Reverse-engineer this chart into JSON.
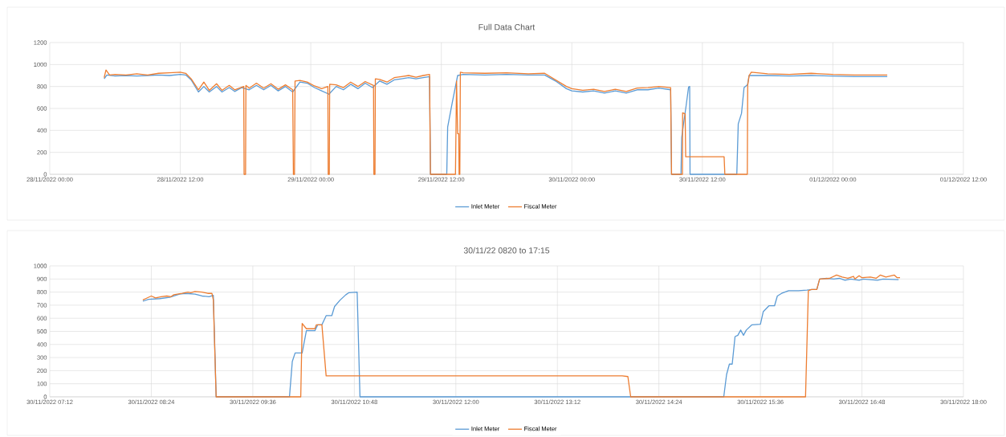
{
  "chart_data": [
    {
      "type": "line",
      "title": "Full Data Chart",
      "grid": true,
      "legend": "bottom",
      "xlim": [
        "2022-11-28T00:00",
        "2022-12-01T12:00"
      ],
      "xticks": [
        {
          "value": "2022-11-28T00:00",
          "label": "28/11/2022 00:00"
        },
        {
          "value": "2022-11-28T12:00",
          "label": "28/11/2022 12:00"
        },
        {
          "value": "2022-11-29T00:00",
          "label": "29/11/2022 00:00"
        },
        {
          "value": "2022-11-29T12:00",
          "label": "29/11/2022 12:00"
        },
        {
          "value": "2022-11-30T00:00",
          "label": "30/11/2022 00:00"
        },
        {
          "value": "2022-11-30T12:00",
          "label": "30/11/2022 12:00"
        },
        {
          "value": "2022-12-01T00:00",
          "label": "01/12/2022 00:00"
        },
        {
          "value": "2022-12-01T12:00",
          "label": "01/12/2022 12:00"
        }
      ],
      "ylim": [
        0,
        1200
      ],
      "yticks": [
        0,
        200,
        400,
        600,
        800,
        1000,
        1200
      ],
      "series": [
        {
          "name": "Inlet Meter",
          "color": "#5b9bd5",
          "x": [
            "2022-11-28T05:00",
            "2022-11-28T05:15",
            "2022-11-28T06:00",
            "2022-11-28T07:00",
            "2022-11-28T08:00",
            "2022-11-28T09:00",
            "2022-11-28T10:00",
            "2022-11-28T11:00",
            "2022-11-28T12:00",
            "2022-11-28T12:30",
            "2022-11-28T13:00",
            "2022-11-28T13:40",
            "2022-11-28T14:10",
            "2022-11-28T14:40",
            "2022-11-28T15:20",
            "2022-11-28T15:50",
            "2022-11-28T16:30",
            "2022-11-28T17:00",
            "2022-11-28T17:40",
            "2022-11-28T18:20",
            "2022-11-28T19:00",
            "2022-11-28T19:40",
            "2022-11-28T20:20",
            "2022-11-28T21:00",
            "2022-11-28T21:40",
            "2022-11-28T22:20",
            "2022-11-28T23:00",
            "2022-11-28T23:40",
            "2022-11-29T00:20",
            "2022-11-29T01:00",
            "2022-11-29T01:40",
            "2022-11-29T02:20",
            "2022-11-29T03:00",
            "2022-11-29T03:40",
            "2022-11-29T04:20",
            "2022-11-29T05:00",
            "2022-11-29T05:40",
            "2022-11-29T06:20",
            "2022-11-29T07:00",
            "2022-11-29T07:40",
            "2022-11-29T08:20",
            "2022-11-29T09:00",
            "2022-11-29T09:40",
            "2022-11-29T10:20",
            "2022-11-29T10:55",
            "2022-11-29T11:00",
            "2022-11-29T12:30",
            "2022-11-29T12:35",
            "2022-11-29T13:00",
            "2022-11-29T13:30",
            "2022-11-29T14:00",
            "2022-11-29T16:00",
            "2022-11-29T18:00",
            "2022-11-29T20:00",
            "2022-11-29T21:30",
            "2022-11-29T22:30",
            "2022-11-29T23:30",
            "2022-11-30T00:00",
            "2022-11-30T01:00",
            "2022-11-30T02:00",
            "2022-11-30T03:00",
            "2022-11-30T04:00",
            "2022-11-30T05:00",
            "2022-11-30T06:00",
            "2022-11-30T07:00",
            "2022-11-30T08:00",
            "2022-11-30T09:05",
            "2022-11-30T09:10",
            "2022-11-30T10:02",
            "2022-11-30T10:06",
            "2022-11-30T10:20",
            "2022-11-30T10:30",
            "2022-11-30T10:44",
            "2022-11-30T10:50",
            "2022-11-30T10:52",
            "2022-11-30T15:10",
            "2022-11-30T15:18",
            "2022-11-30T15:36",
            "2022-11-30T15:50",
            "2022-11-30T16:09",
            "2022-11-30T16:18",
            "2022-11-30T18:00",
            "2022-11-30T20:00",
            "2022-11-30T22:00",
            "2022-12-01T00:00",
            "2022-12-01T02:00",
            "2022-12-01T04:00",
            "2022-12-01T05:00"
          ],
          "values": [
            870,
            905,
            895,
            900,
            895,
            900,
            905,
            900,
            910,
            905,
            860,
            750,
            800,
            750,
            800,
            750,
            790,
            755,
            790,
            770,
            810,
            770,
            810,
            760,
            800,
            750,
            840,
            830,
            790,
            760,
            730,
            800,
            770,
            820,
            780,
            830,
            790,
            850,
            820,
            860,
            870,
            880,
            870,
            880,
            890,
            0,
            0,
            430,
            650,
            900,
            910,
            905,
            910,
            905,
            905,
            850,
            780,
            760,
            750,
            760,
            740,
            760,
            740,
            770,
            770,
            785,
            770,
            0,
            0,
            335,
            505,
            620,
            795,
            800,
            0,
            0,
            460,
            555,
            790,
            815,
            900,
            900,
            895,
            900,
            895,
            890,
            890,
            890
          ]
        },
        {
          "name": "Fiscal Meter",
          "color": "#ed7d31",
          "x": [
            "2022-11-28T05:00",
            "2022-11-28T05:10",
            "2022-11-28T05:30",
            "2022-11-28T06:00",
            "2022-11-28T07:00",
            "2022-11-28T08:00",
            "2022-11-28T09:00",
            "2022-11-28T10:00",
            "2022-11-28T11:00",
            "2022-11-28T12:00",
            "2022-11-28T12:30",
            "2022-11-28T13:00",
            "2022-11-28T13:40",
            "2022-11-28T14:10",
            "2022-11-28T14:40",
            "2022-11-28T15:20",
            "2022-11-28T15:50",
            "2022-11-28T16:30",
            "2022-11-28T17:00",
            "2022-11-28T17:50",
            "2022-11-28T17:52",
            "2022-11-28T18:00",
            "2022-11-28T18:02",
            "2022-11-28T18:20",
            "2022-11-28T19:00",
            "2022-11-28T19:40",
            "2022-11-28T20:20",
            "2022-11-28T21:00",
            "2022-11-28T21:40",
            "2022-11-28T22:20",
            "2022-11-28T22:24",
            "2022-11-28T22:30",
            "2022-11-28T22:33",
            "2022-11-28T23:00",
            "2022-11-28T23:40",
            "2022-11-29T00:20",
            "2022-11-29T01:00",
            "2022-11-29T01:34",
            "2022-11-29T01:36",
            "2022-11-29T01:42",
            "2022-11-29T01:44",
            "2022-11-29T02:20",
            "2022-11-29T03:00",
            "2022-11-29T03:40",
            "2022-11-29T04:20",
            "2022-11-29T05:00",
            "2022-11-29T05:46",
            "2022-11-29T05:48",
            "2022-11-29T05:54",
            "2022-11-29T05:56",
            "2022-11-29T06:20",
            "2022-11-29T07:00",
            "2022-11-29T07:40",
            "2022-11-29T08:20",
            "2022-11-29T09:00",
            "2022-11-29T09:40",
            "2022-11-29T10:20",
            "2022-11-29T10:55",
            "2022-11-29T11:00",
            "2022-11-29T13:18",
            "2022-11-29T13:24",
            "2022-11-29T13:30",
            "2022-11-29T13:36",
            "2022-11-29T13:38",
            "2022-11-29T13:42",
            "2022-11-29T13:45",
            "2022-11-29T14:00",
            "2022-11-29T16:00",
            "2022-11-29T18:00",
            "2022-11-29T20:00",
            "2022-11-29T21:30",
            "2022-11-29T22:30",
            "2022-11-29T23:30",
            "2022-11-30T00:00",
            "2022-11-30T01:00",
            "2022-11-30T02:00",
            "2022-11-30T03:00",
            "2022-11-30T04:00",
            "2022-11-30T05:00",
            "2022-11-30T06:00",
            "2022-11-30T07:00",
            "2022-11-30T08:00",
            "2022-11-30T09:05",
            "2022-11-30T09:10",
            "2022-11-30T10:10",
            "2022-11-30T10:11",
            "2022-11-30T10:25",
            "2022-11-30T10:28",
            "2022-11-30T14:00",
            "2022-11-30T14:04",
            "2022-11-30T16:08",
            "2022-11-30T16:10",
            "2022-11-30T16:18",
            "2022-11-30T16:30",
            "2022-11-30T18:00",
            "2022-11-30T20:00",
            "2022-11-30T22:00",
            "2022-12-01T00:00",
            "2022-12-01T02:00",
            "2022-12-01T04:00",
            "2022-12-01T05:00"
          ],
          "values": [
            880,
            950,
            905,
            910,
            905,
            915,
            905,
            920,
            925,
            930,
            920,
            870,
            770,
            840,
            765,
            825,
            765,
            810,
            770,
            800,
            0,
            0,
            810,
            785,
            830,
            785,
            825,
            775,
            815,
            770,
            0,
            0,
            850,
            855,
            840,
            805,
            780,
            800,
            0,
            0,
            820,
            815,
            790,
            840,
            800,
            845,
            810,
            0,
            0,
            870,
            865,
            840,
            880,
            890,
            900,
            885,
            900,
            910,
            0,
            0,
            850,
            370,
            370,
            0,
            0,
            930,
            925,
            920,
            925,
            915,
            920,
            860,
            800,
            780,
            765,
            775,
            755,
            775,
            755,
            785,
            790,
            800,
            790,
            0,
            0,
            560,
            550,
            160,
            160,
            0,
            0,
            810,
            900,
            930,
            915,
            910,
            920,
            910,
            905,
            905,
            905
          ]
        }
      ]
    },
    {
      "type": "line",
      "title": "30/11/22 0820 to 17:15",
      "grid": true,
      "legend": "bottom",
      "xlim": [
        "2022-11-30T07:12",
        "2022-11-30T18:00"
      ],
      "xticks": [
        {
          "value": "2022-11-30T07:12",
          "label": "30/11/2022 07:12"
        },
        {
          "value": "2022-11-30T08:24",
          "label": "30/11/2022 08:24"
        },
        {
          "value": "2022-11-30T09:36",
          "label": "30/11/2022 09:36"
        },
        {
          "value": "2022-11-30T10:48",
          "label": "30/11/2022 10:48"
        },
        {
          "value": "2022-11-30T12:00",
          "label": "30/11/2022 12:00"
        },
        {
          "value": "2022-11-30T13:12",
          "label": "30/11/2022 13:12"
        },
        {
          "value": "2022-11-30T14:24",
          "label": "30/11/2022 14:24"
        },
        {
          "value": "2022-11-30T15:36",
          "label": "30/11/2022 15:36"
        },
        {
          "value": "2022-11-30T16:48",
          "label": "30/11/2022 16:48"
        },
        {
          "value": "2022-11-30T18:00",
          "label": "30/11/2022 18:00"
        }
      ],
      "ylim": [
        0,
        1000
      ],
      "yticks": [
        0,
        100,
        200,
        300,
        400,
        500,
        600,
        700,
        800,
        900,
        1000
      ],
      "series": [
        {
          "name": "Inlet Meter",
          "color": "#5b9bd5",
          "x": [
            "2022-11-30T08:18",
            "2022-11-30T08:22",
            "2022-11-30T08:30",
            "2022-11-30T08:37",
            "2022-11-30T08:44",
            "2022-11-30T08:48",
            "2022-11-30T08:55",
            "2022-11-30T09:00",
            "2022-11-30T09:05",
            "2022-11-30T09:08",
            "2022-11-30T09:10",
            "2022-11-30T10:02",
            "2022-11-30T10:04",
            "2022-11-30T10:06",
            "2022-11-30T10:11",
            "2022-11-30T10:14",
            "2022-11-30T10:20",
            "2022-11-30T10:22",
            "2022-11-30T10:25",
            "2022-11-30T10:28",
            "2022-11-30T10:32",
            "2022-11-30T10:34",
            "2022-11-30T10:38",
            "2022-11-30T10:42",
            "2022-11-30T10:44",
            "2022-11-30T10:50",
            "2022-11-30T10:52",
            "2022-11-30T15:10",
            "2022-11-30T15:12",
            "2022-11-30T15:14",
            "2022-11-30T15:16",
            "2022-11-30T15:18",
            "2022-11-30T15:20",
            "2022-11-30T15:22",
            "2022-11-30T15:24",
            "2022-11-30T15:26",
            "2022-11-30T15:30",
            "2022-11-30T15:36",
            "2022-11-30T15:38",
            "2022-11-30T15:42",
            "2022-11-30T15:46",
            "2022-11-30T15:48",
            "2022-11-30T15:51",
            "2022-11-30T15:56",
            "2022-11-30T16:03",
            "2022-11-30T16:09",
            "2022-11-30T16:13",
            "2022-11-30T16:16",
            "2022-11-30T16:18",
            "2022-11-30T16:23",
            "2022-11-30T16:28",
            "2022-11-30T16:32",
            "2022-11-30T16:36",
            "2022-11-30T16:40",
            "2022-11-30T16:46",
            "2022-11-30T16:49",
            "2022-11-30T16:59",
            "2022-11-30T17:03",
            "2022-11-30T17:14"
          ],
          "values": [
            730,
            745,
            750,
            760,
            785,
            790,
            785,
            770,
            765,
            775,
            0,
            0,
            270,
            335,
            335,
            505,
            505,
            550,
            550,
            620,
            620,
            690,
            740,
            780,
            795,
            800,
            0,
            0,
            170,
            250,
            250,
            460,
            470,
            510,
            470,
            510,
            550,
            555,
            650,
            695,
            695,
            770,
            790,
            810,
            810,
            815,
            820,
            820,
            900,
            905,
            900,
            905,
            890,
            900,
            890,
            900,
            890,
            900,
            895
          ]
        },
        {
          "name": "Fiscal Meter",
          "color": "#ed7d31",
          "x": [
            "2022-11-30T08:18",
            "2022-11-30T08:20",
            "2022-11-30T08:24",
            "2022-11-30T08:27",
            "2022-11-30T08:31",
            "2022-11-30T08:35",
            "2022-11-30T08:38",
            "2022-11-30T08:40",
            "2022-11-30T08:46",
            "2022-11-30T08:50",
            "2022-11-30T08:52",
            "2022-11-30T08:55",
            "2022-11-30T09:00",
            "2022-11-30T09:04",
            "2022-11-30T09:07",
            "2022-11-30T09:08",
            "2022-11-30T09:10",
            "2022-11-30T10:10",
            "2022-11-30T10:11",
            "2022-11-30T10:14",
            "2022-11-30T10:20",
            "2022-11-30T10:21",
            "2022-11-30T10:25",
            "2022-11-30T10:28",
            "2022-11-30T13:58",
            "2022-11-30T14:02",
            "2022-11-30T14:04",
            "2022-11-30T16:08",
            "2022-11-30T16:10",
            "2022-11-30T16:12",
            "2022-11-30T16:16",
            "2022-11-30T16:18",
            "2022-11-30T16:25",
            "2022-11-30T16:30",
            "2022-11-30T16:34",
            "2022-11-30T16:38",
            "2022-11-30T16:42",
            "2022-11-30T16:43",
            "2022-11-30T16:46",
            "2022-11-30T16:48",
            "2022-11-30T16:54",
            "2022-11-30T16:58",
            "2022-11-30T17:01",
            "2022-11-30T17:05",
            "2022-11-30T17:11",
            "2022-11-30T17:13",
            "2022-11-30T17:15"
          ],
          "values": [
            740,
            750,
            770,
            755,
            765,
            770,
            765,
            780,
            790,
            800,
            795,
            805,
            800,
            790,
            790,
            740,
            0,
            0,
            560,
            520,
            520,
            550,
            550,
            160,
            160,
            155,
            0,
            0,
            810,
            820,
            820,
            900,
            905,
            930,
            915,
            905,
            920,
            900,
            925,
            910,
            915,
            905,
            930,
            915,
            930,
            910,
            910
          ]
        }
      ]
    }
  ]
}
